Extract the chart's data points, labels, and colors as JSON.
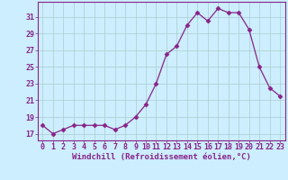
{
  "x": [
    0,
    1,
    2,
    3,
    4,
    5,
    6,
    7,
    8,
    9,
    10,
    11,
    12,
    13,
    14,
    15,
    16,
    17,
    18,
    19,
    20,
    21,
    22,
    23
  ],
  "y": [
    18.0,
    17.0,
    17.5,
    18.0,
    18.0,
    18.0,
    18.0,
    17.5,
    18.0,
    19.0,
    20.5,
    23.0,
    26.5,
    27.5,
    30.0,
    31.5,
    30.5,
    32.0,
    31.5,
    31.5,
    29.5,
    25.0,
    22.5,
    21.5
  ],
  "line_color": "#882288",
  "marker": "D",
  "marker_size": 2.5,
  "bg_color": "#cceeff",
  "grid_color": "#aacccc",
  "xlabel": "Windchill (Refroidissement éolien,°C)",
  "xlabel_fontsize": 6.5,
  "ytick_labels": [
    "17",
    "19",
    "21",
    "23",
    "25",
    "27",
    "29",
    "31"
  ],
  "ytick_vals": [
    17,
    19,
    21,
    23,
    25,
    27,
    29,
    31
  ],
  "xtick_vals": [
    0,
    1,
    2,
    3,
    4,
    5,
    6,
    7,
    8,
    9,
    10,
    11,
    12,
    13,
    14,
    15,
    16,
    17,
    18,
    19,
    20,
    21,
    22,
    23
  ],
  "ylim": [
    16.2,
    32.8
  ],
  "xlim": [
    -0.5,
    23.5
  ],
  "tick_fontsize": 6.0,
  "tick_color": "#882288",
  "spine_color": "#882288"
}
